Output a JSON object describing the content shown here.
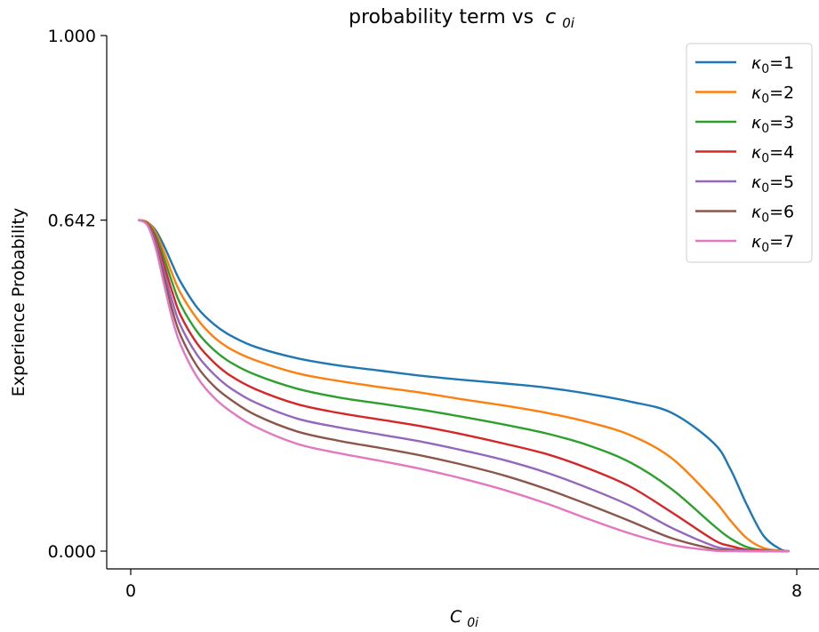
{
  "chart_data": {
    "type": "line",
    "title": "probability term vs",
    "title_math": "c",
    "title_math_sub": "0i",
    "xlabel": "C",
    "xlabel_sub": "0i",
    "ylabel": "Experience Probability",
    "xlim": [
      -0.3,
      8.1
    ],
    "ylim": [
      -0.032,
      1.0
    ],
    "x_ticks": [
      0,
      8
    ],
    "x_tick_labels": [
      "0",
      "8"
    ],
    "y_ticks": [
      0.0,
      0.642,
      1.0
    ],
    "y_tick_labels": [
      "0.000",
      "0.642",
      "1.000"
    ],
    "grid": false,
    "legend_position": "top-right",
    "legend_symbol": "κ",
    "legend_sub": "0",
    "series": [
      {
        "name": "1",
        "color": "#1f77b4",
        "x": [
          0.1,
          0.2,
          0.3,
          0.4,
          0.5,
          0.6,
          0.8,
          1.0,
          1.2,
          1.5,
          2.0,
          2.5,
          3.0,
          3.5,
          4.0,
          4.5,
          5.0,
          5.5,
          6.0,
          6.5,
          7.0,
          7.2,
          7.4,
          7.6,
          7.8,
          7.9
        ],
        "y": [
          0.642,
          0.638,
          0.622,
          0.592,
          0.556,
          0.522,
          0.472,
          0.44,
          0.418,
          0.396,
          0.374,
          0.36,
          0.35,
          0.34,
          0.332,
          0.325,
          0.317,
          0.305,
          0.29,
          0.268,
          0.21,
          0.16,
          0.09,
          0.03,
          0.004,
          0.0
        ]
      },
      {
        "name": "2",
        "color": "#ff7f0e",
        "x": [
          0.1,
          0.2,
          0.3,
          0.4,
          0.5,
          0.6,
          0.8,
          1.0,
          1.2,
          1.5,
          2.0,
          2.5,
          3.0,
          3.5,
          4.0,
          4.5,
          5.0,
          5.5,
          6.0,
          6.5,
          7.0,
          7.2,
          7.4,
          7.6,
          7.8,
          7.9
        ],
        "y": [
          0.642,
          0.638,
          0.618,
          0.58,
          0.537,
          0.5,
          0.45,
          0.415,
          0.392,
          0.37,
          0.345,
          0.33,
          0.318,
          0.307,
          0.294,
          0.282,
          0.268,
          0.25,
          0.225,
          0.18,
          0.1,
          0.06,
          0.025,
          0.006,
          0.001,
          0.0
        ]
      },
      {
        "name": "3",
        "color": "#2ca02c",
        "x": [
          0.1,
          0.2,
          0.3,
          0.4,
          0.5,
          0.6,
          0.8,
          1.0,
          1.2,
          1.5,
          2.0,
          2.5,
          3.0,
          3.5,
          4.0,
          4.5,
          5.0,
          5.5,
          6.0,
          6.5,
          7.0,
          7.2,
          7.4,
          7.6,
          7.8,
          7.9
        ],
        "y": [
          0.642,
          0.636,
          0.612,
          0.568,
          0.52,
          0.478,
          0.425,
          0.39,
          0.366,
          0.342,
          0.315,
          0.298,
          0.286,
          0.274,
          0.26,
          0.245,
          0.228,
          0.205,
          0.172,
          0.12,
          0.05,
          0.025,
          0.008,
          0.002,
          0.0,
          0.0
        ]
      },
      {
        "name": "4",
        "color": "#d62728",
        "x": [
          0.1,
          0.2,
          0.3,
          0.4,
          0.5,
          0.6,
          0.8,
          1.0,
          1.2,
          1.5,
          2.0,
          2.5,
          3.0,
          3.5,
          4.0,
          4.5,
          5.0,
          5.5,
          6.0,
          6.5,
          7.0,
          7.2,
          7.4,
          7.6,
          7.8,
          7.9
        ],
        "y": [
          0.642,
          0.635,
          0.606,
          0.555,
          0.502,
          0.457,
          0.402,
          0.366,
          0.34,
          0.314,
          0.285,
          0.268,
          0.255,
          0.242,
          0.226,
          0.208,
          0.188,
          0.16,
          0.125,
          0.075,
          0.022,
          0.01,
          0.003,
          0.001,
          0.0,
          0.0
        ]
      },
      {
        "name": "5",
        "color": "#9467bd",
        "x": [
          0.1,
          0.2,
          0.3,
          0.4,
          0.5,
          0.6,
          0.8,
          1.0,
          1.2,
          1.5,
          2.0,
          2.5,
          3.0,
          3.5,
          4.0,
          4.5,
          5.0,
          5.5,
          6.0,
          6.5,
          7.0,
          7.2,
          7.4,
          7.6,
          7.8,
          7.9
        ],
        "y": [
          0.642,
          0.634,
          0.6,
          0.542,
          0.484,
          0.437,
          0.38,
          0.343,
          0.316,
          0.288,
          0.257,
          0.24,
          0.226,
          0.212,
          0.195,
          0.176,
          0.152,
          0.122,
          0.088,
          0.045,
          0.01,
          0.004,
          0.001,
          0.0,
          0.0,
          0.0
        ]
      },
      {
        "name": "6",
        "color": "#8c564b",
        "x": [
          0.1,
          0.2,
          0.3,
          0.4,
          0.5,
          0.6,
          0.8,
          1.0,
          1.2,
          1.5,
          2.0,
          2.5,
          3.0,
          3.5,
          4.0,
          4.5,
          5.0,
          5.5,
          6.0,
          6.5,
          7.0,
          7.2,
          7.4,
          7.6,
          7.8,
          7.9
        ],
        "y": [
          0.642,
          0.633,
          0.594,
          0.53,
          0.467,
          0.418,
          0.358,
          0.32,
          0.294,
          0.264,
          0.232,
          0.214,
          0.2,
          0.185,
          0.167,
          0.146,
          0.12,
          0.09,
          0.058,
          0.025,
          0.004,
          0.001,
          0.0,
          0.0,
          0.0,
          0.0
        ]
      },
      {
        "name": "7",
        "color": "#e377c2",
        "x": [
          0.1,
          0.2,
          0.3,
          0.4,
          0.5,
          0.6,
          0.8,
          1.0,
          1.2,
          1.5,
          2.0,
          2.5,
          3.0,
          3.5,
          4.0,
          4.5,
          5.0,
          5.5,
          6.0,
          6.5,
          7.0,
          7.2,
          7.4,
          7.6,
          7.8,
          7.9
        ],
        "y": [
          0.642,
          0.632,
          0.588,
          0.518,
          0.45,
          0.4,
          0.337,
          0.298,
          0.271,
          0.241,
          0.208,
          0.19,
          0.175,
          0.159,
          0.14,
          0.118,
          0.092,
          0.062,
          0.034,
          0.012,
          0.001,
          0.0,
          0.0,
          0.0,
          0.0,
          0.0
        ]
      }
    ]
  }
}
